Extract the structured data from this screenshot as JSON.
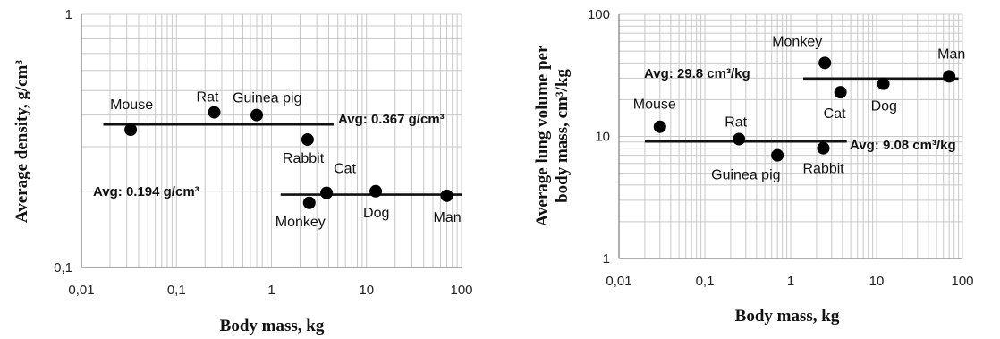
{
  "chart_data": [
    {
      "type": "scatter",
      "x_scale": "log",
      "y_scale": "log",
      "xlim": [
        0.01,
        100
      ],
      "ylim": [
        0.1,
        1
      ],
      "x_ticks": [
        "0,01",
        "0,1",
        "1",
        "10",
        "100"
      ],
      "y_ticks": [
        "0,1",
        "1"
      ],
      "xlabel": "Body mass, kg",
      "ylabel": "Average density, g/cm³",
      "grid": true,
      "points": [
        {
          "label": "Mouse",
          "x": 0.033,
          "y": 0.35
        },
        {
          "label": "Rat",
          "x": 0.25,
          "y": 0.41
        },
        {
          "label": "Guinea pig",
          "x": 0.7,
          "y": 0.4
        },
        {
          "label": "Rabbit",
          "x": 2.4,
          "y": 0.32
        },
        {
          "label": "Cat",
          "x": 3.8,
          "y": 0.197
        },
        {
          "label": "Monkey",
          "x": 2.5,
          "y": 0.18
        },
        {
          "label": "Dog",
          "x": 12.5,
          "y": 0.2
        },
        {
          "label": "Man",
          "x": 70,
          "y": 0.192
        }
      ],
      "avg_lines": [
        {
          "label": "Avg: 0.367 g/cm³",
          "y": 0.367,
          "x_from": 0.017,
          "x_to": 4.5
        },
        {
          "label": "Avg: 0.194 g/cm³",
          "y": 0.194,
          "x_from": 1.25,
          "x_to": 100
        }
      ]
    },
    {
      "type": "scatter",
      "x_scale": "log",
      "y_scale": "log",
      "xlim": [
        0.01,
        100
      ],
      "ylim": [
        1,
        100
      ],
      "x_ticks": [
        "0,01",
        "0,1",
        "1",
        "10",
        "100"
      ],
      "y_ticks": [
        "1",
        "10",
        "100"
      ],
      "xlabel": "Body mass, kg",
      "ylabel": "Average lung volume per body mass, cm³/kg",
      "grid": true,
      "points": [
        {
          "label": "Mouse",
          "x": 0.03,
          "y": 12
        },
        {
          "label": "Rat",
          "x": 0.25,
          "y": 9.5
        },
        {
          "label": "Guinea pig",
          "x": 0.7,
          "y": 7
        },
        {
          "label": "Rabbit",
          "x": 2.4,
          "y": 8
        },
        {
          "label": "Monkey",
          "x": 2.5,
          "y": 40
        },
        {
          "label": "Cat",
          "x": 3.8,
          "y": 23
        },
        {
          "label": "Dog",
          "x": 12,
          "y": 27
        },
        {
          "label": "Man",
          "x": 70,
          "y": 31
        }
      ],
      "avg_lines": [
        {
          "label": "Avg: 29.8 cm³/kg",
          "y": 29.8,
          "x_from": 1.4,
          "x_to": 90
        },
        {
          "label": "Avg: 9.08 cm³/kg",
          "y": 9.08,
          "x_from": 0.02,
          "x_to": 4.5
        }
      ]
    }
  ]
}
